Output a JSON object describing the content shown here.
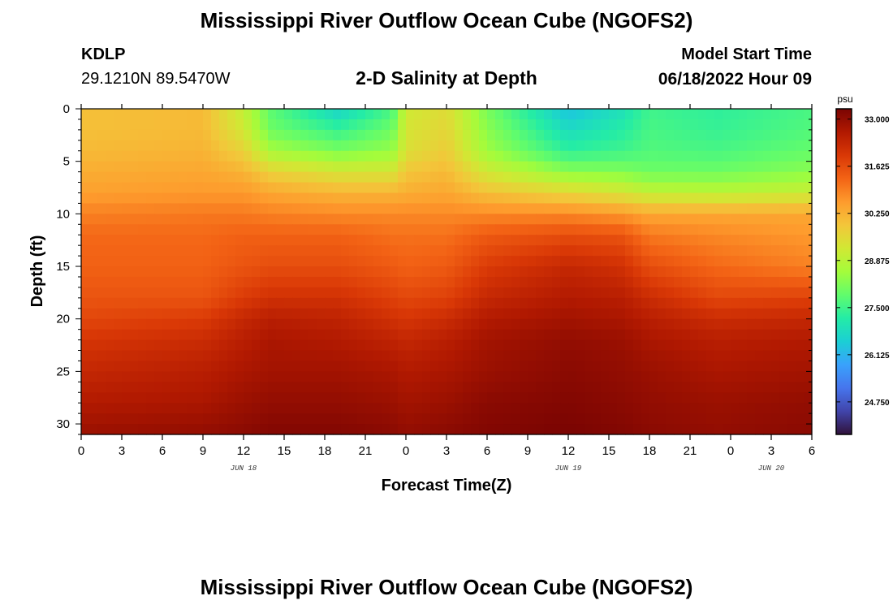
{
  "header": {
    "title": "Mississippi River Outflow Ocean Cube (NGOFS2)",
    "station_id": "KDLP",
    "coordinates": "29.1210N  89.5470W",
    "subtitle": "2-D Salinity at Depth",
    "model_start_label": "Model Start Time",
    "model_start_value": "06/18/2022 Hour 09"
  },
  "footer": {
    "title": "Mississippi River Outflow Ocean Cube (NGOFS2)"
  },
  "chart_data": {
    "type": "heatmap",
    "title": "2-D Salinity at Depth",
    "xlabel": "Forecast Time(Z)",
    "ylabel": "Depth (ft)",
    "x_range_hours": [
      0,
      54
    ],
    "x_tick_labels": [
      "0",
      "3",
      "6",
      "9",
      "12",
      "15",
      "18",
      "21",
      "0",
      "3",
      "6",
      "9",
      "12",
      "15",
      "18",
      "21",
      "0",
      "3",
      "6"
    ],
    "date_labels": [
      {
        "label": "JUN 18",
        "hour": 12
      },
      {
        "label": "JUN 19",
        "hour": 36
      },
      {
        "label": "JUN 20",
        "hour": 51
      }
    ],
    "ylim": [
      0,
      31
    ],
    "y_inverted": true,
    "y_ticks": [
      0,
      5,
      10,
      15,
      20,
      25,
      30
    ],
    "colorbar": {
      "unit": "psu",
      "min": 23.8,
      "max": 33.3,
      "tick_labels": [
        "33.000",
        "31.625",
        "30.250",
        "28.875",
        "27.500",
        "26.125",
        "24.750"
      ],
      "tick_values": [
        33.0,
        31.625,
        30.25,
        28.875,
        27.5,
        26.125,
        24.75
      ],
      "colors": [
        "#30123b",
        "#4145ab",
        "#4675ed",
        "#39a2fc",
        "#1bcfd4",
        "#24eca6",
        "#61fc6c",
        "#a4fc3b",
        "#d1e834",
        "#f3c63a",
        "#fe9b2d",
        "#f36315",
        "#d93806",
        "#b11901",
        "#7a0402"
      ]
    },
    "salinity_keyframes": {
      "depth_ft": [
        0,
        2,
        4,
        6,
        8,
        10,
        12,
        15,
        18,
        20,
        22,
        25,
        28,
        31
      ],
      "profiles": [
        {
          "hour": 0,
          "values": [
            30.0,
            30.0,
            30.1,
            30.3,
            30.5,
            30.9,
            31.2,
            31.3,
            31.5,
            31.7,
            32.0,
            32.3,
            32.6,
            32.9
          ]
        },
        {
          "hour": 9,
          "values": [
            30.1,
            30.1,
            30.2,
            30.4,
            30.6,
            31.0,
            31.2,
            31.3,
            31.5,
            31.9,
            32.2,
            32.5,
            32.7,
            33.0
          ]
        },
        {
          "hour": 12,
          "values": [
            29.0,
            29.2,
            29.7,
            30.2,
            30.6,
            31.0,
            31.3,
            31.5,
            31.9,
            32.3,
            32.5,
            32.7,
            32.9,
            33.1
          ]
        },
        {
          "hour": 14,
          "values": [
            27.8,
            28.0,
            28.6,
            29.7,
            30.4,
            30.9,
            31.3,
            31.6,
            32.1,
            32.5,
            32.7,
            32.8,
            33.0,
            33.2
          ]
        },
        {
          "hour": 19,
          "values": [
            26.6,
            27.4,
            28.1,
            29.3,
            30.2,
            30.8,
            31.3,
            31.6,
            32.1,
            32.4,
            32.6,
            32.8,
            33.0,
            33.2
          ]
        },
        {
          "hour": 23,
          "values": [
            27.6,
            28.0,
            28.4,
            29.3,
            30.2,
            30.8,
            31.1,
            31.4,
            31.8,
            32.1,
            32.4,
            32.7,
            32.9,
            33.1
          ]
        },
        {
          "hour": 24,
          "values": [
            29.2,
            29.3,
            29.4,
            29.9,
            30.3,
            30.8,
            31.1,
            31.3,
            31.7,
            32.0,
            32.3,
            32.6,
            32.8,
            33.0
          ]
        },
        {
          "hour": 27,
          "values": [
            29.5,
            29.6,
            29.8,
            30.1,
            30.4,
            30.8,
            31.1,
            31.4,
            31.8,
            32.2,
            32.5,
            32.7,
            32.9,
            33.1
          ]
        },
        {
          "hour": 30,
          "values": [
            28.1,
            28.3,
            28.5,
            29.2,
            30.0,
            30.8,
            31.4,
            31.9,
            32.3,
            32.6,
            32.8,
            32.9,
            33.1,
            33.2
          ]
        },
        {
          "hour": 36,
          "values": [
            26.3,
            26.8,
            27.3,
            28.3,
            29.6,
            30.8,
            31.6,
            32.3,
            32.6,
            32.8,
            33.0,
            33.1,
            33.2,
            33.3
          ]
        },
        {
          "hour": 40,
          "values": [
            26.9,
            27.2,
            27.5,
            28.2,
            29.3,
            30.6,
            31.5,
            32.1,
            32.5,
            32.7,
            32.9,
            33.0,
            33.1,
            33.2
          ]
        },
        {
          "hour": 42,
          "values": [
            27.5,
            27.6,
            27.7,
            28.0,
            29.0,
            30.4,
            31.0,
            31.6,
            32.2,
            32.5,
            32.7,
            32.9,
            33.0,
            33.1
          ]
        },
        {
          "hour": 47,
          "values": [
            27.3,
            27.4,
            27.6,
            28.0,
            28.9,
            30.4,
            30.8,
            31.2,
            31.7,
            32.2,
            32.5,
            32.7,
            32.9,
            33.0
          ]
        },
        {
          "hour": 54,
          "values": [
            27.6,
            27.7,
            27.9,
            28.3,
            29.1,
            30.4,
            30.6,
            30.9,
            31.8,
            32.3,
            32.6,
            32.8,
            33.0,
            33.1
          ]
        }
      ]
    }
  }
}
